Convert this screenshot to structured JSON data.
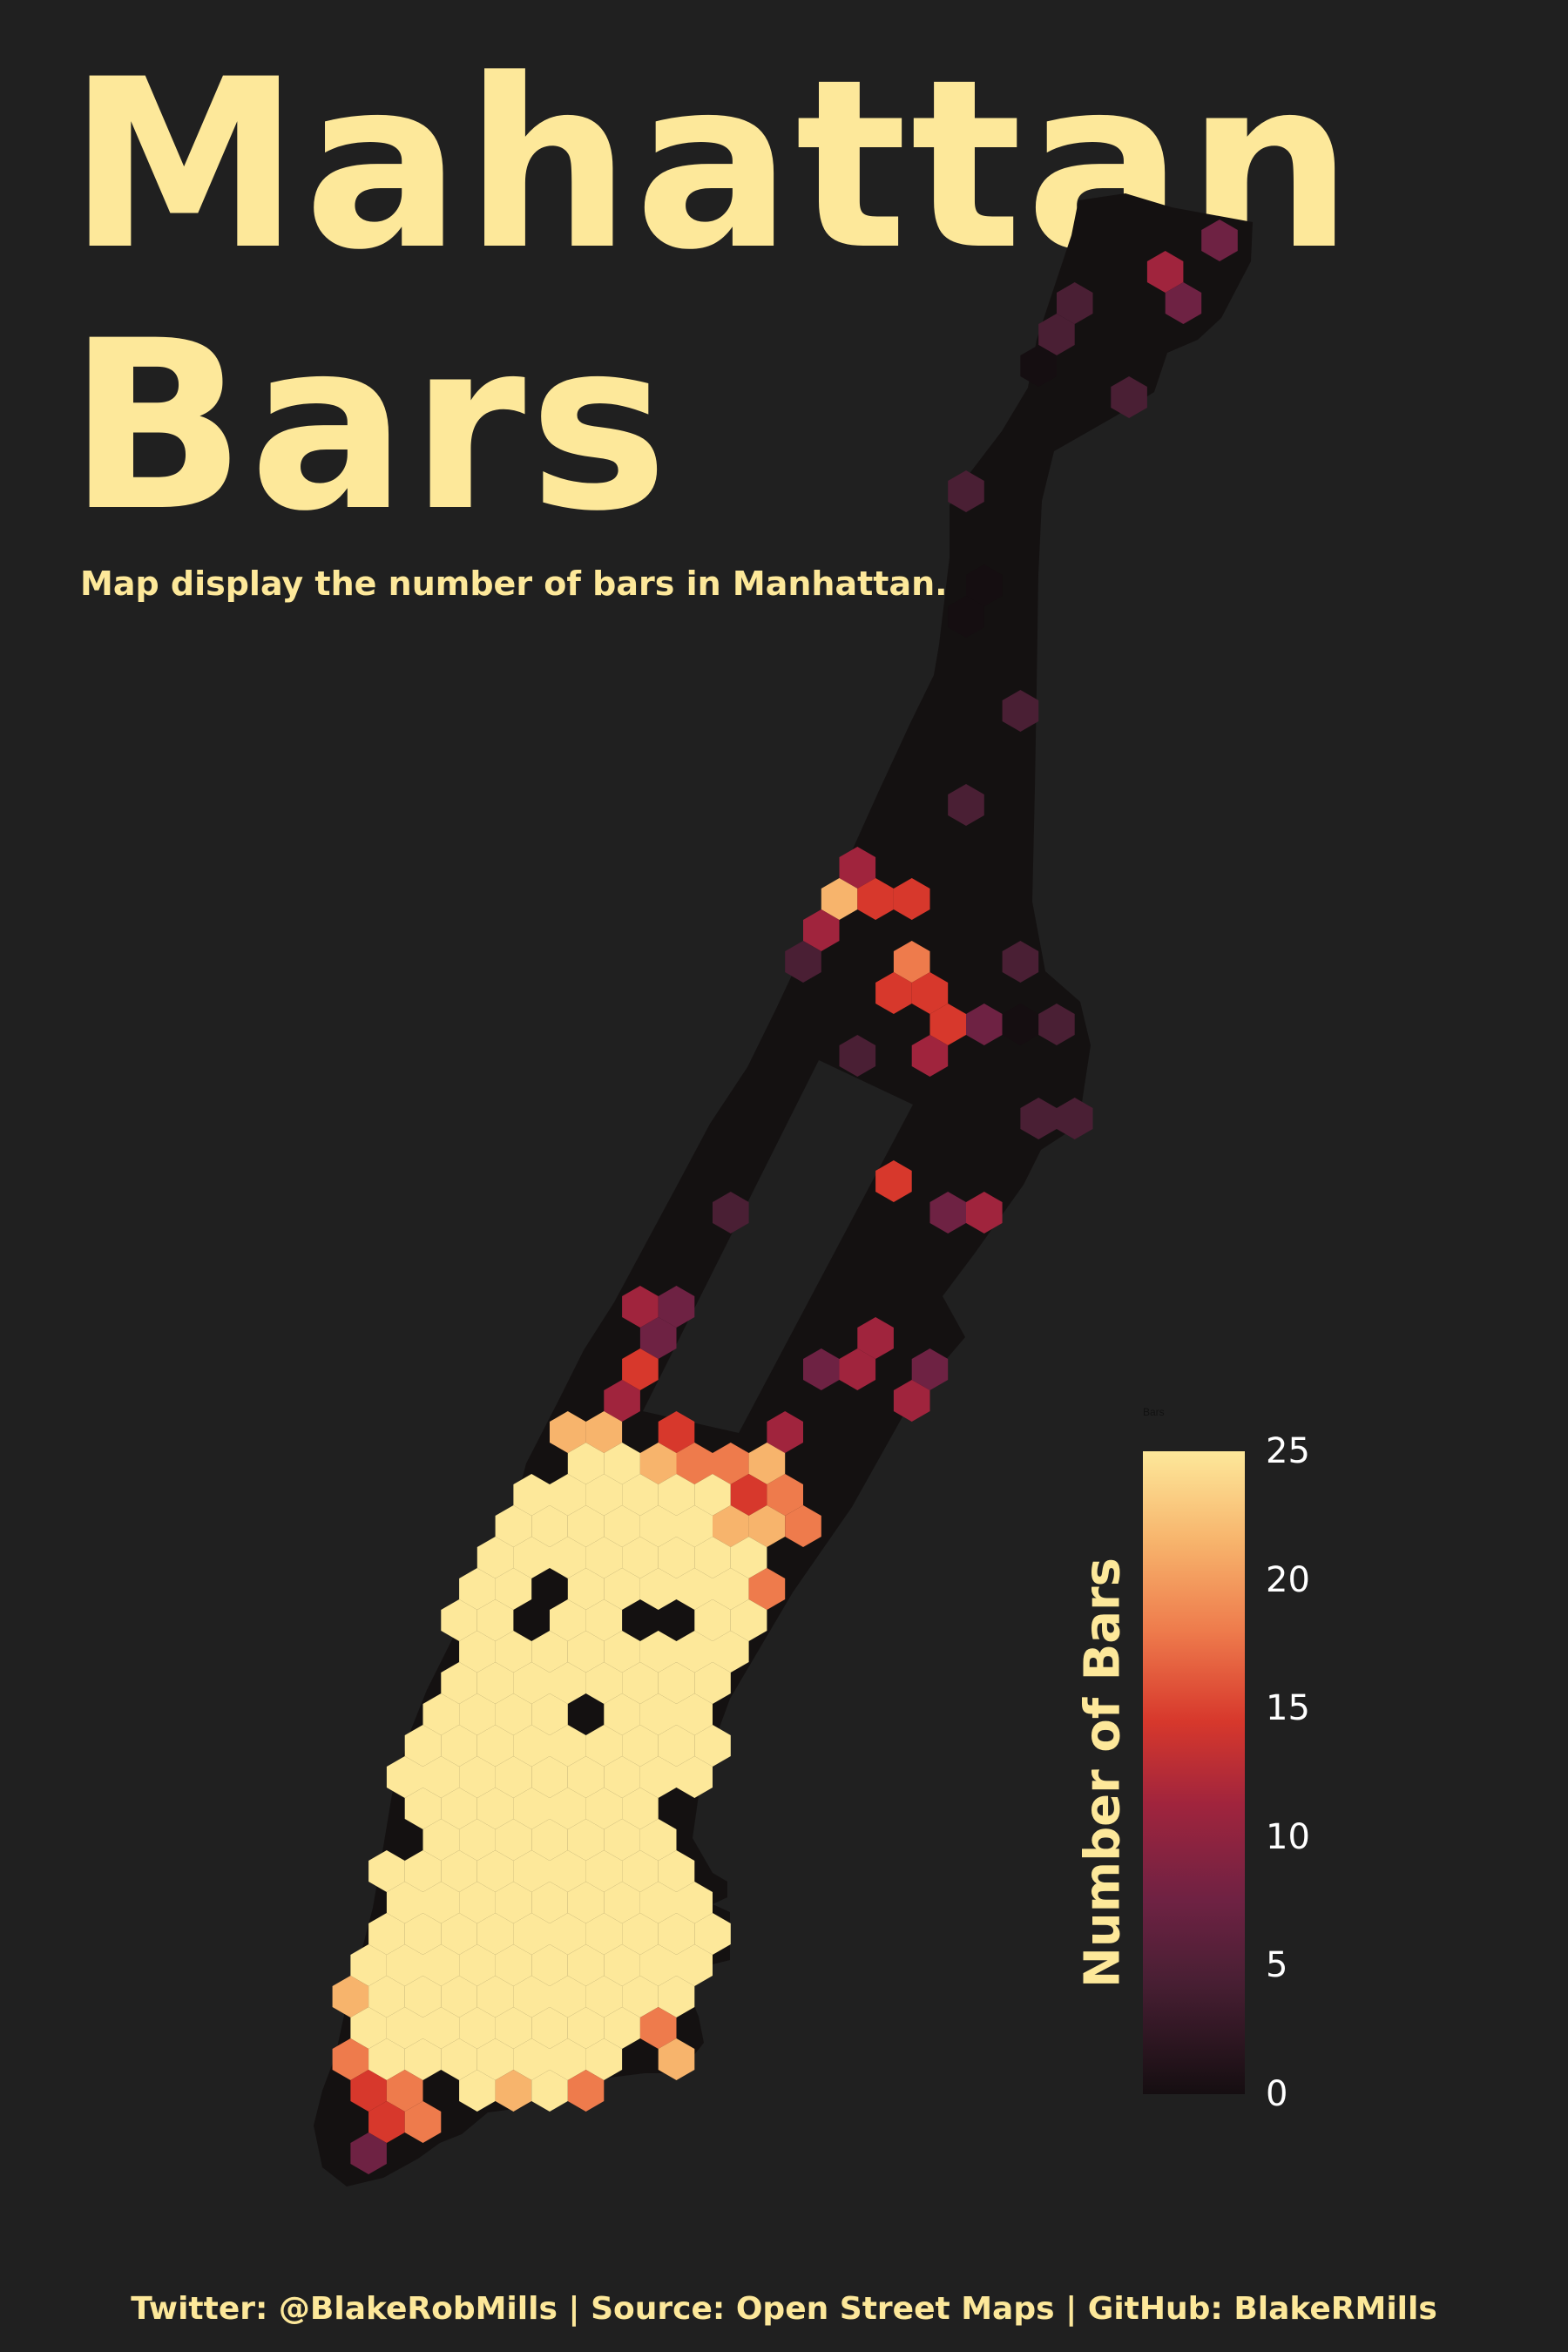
{
  "title_line1": "Mahattan",
  "title_line2": "Bars",
  "subtitle": "Map display the number of bars in Manhattan.",
  "legend": {
    "small_label": "Bars",
    "title": "Number of Bars",
    "ticks": [
      "0",
      "5",
      "10",
      "15",
      "20",
      "25"
    ],
    "min": 0,
    "max": 25
  },
  "footer": "Twitter: @BlakeRobMills | Source: Open Street Maps | GitHub: BlakeRMills",
  "colors": {
    "background": "#202020",
    "land": "#141111",
    "text": "#FDE89A",
    "scale": [
      "#150E11",
      "#4A1F34",
      "#6E2243",
      "#A0243D",
      "#D7382C",
      "#EE7B4C",
      "#F7B46C",
      "#FDE89A"
    ]
  }
}
